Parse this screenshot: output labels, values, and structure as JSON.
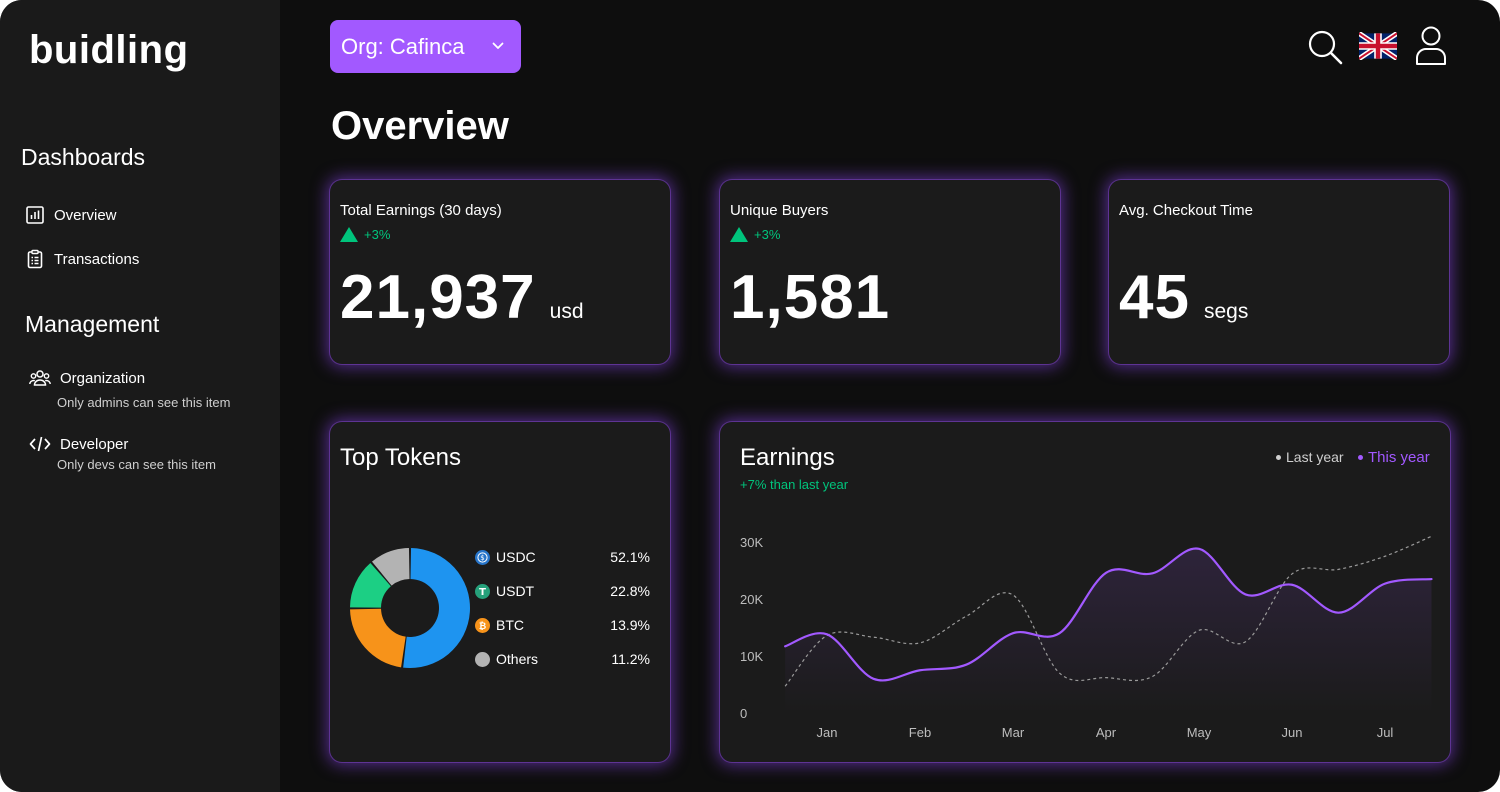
{
  "app": {
    "logo": "buidling"
  },
  "sidebar": {
    "dashboards_title": "Dashboards",
    "management_title": "Management",
    "items": {
      "overview": {
        "label": "Overview",
        "icon": "bar-chart-icon"
      },
      "transactions": {
        "label": "Transactions",
        "icon": "clipboard-icon"
      },
      "organization": {
        "label": "Organization",
        "icon": "users-icon",
        "note": "Only admins can see this item"
      },
      "developer": {
        "label": "Developer",
        "icon": "code-icon",
        "note": "Only devs can see this item"
      }
    }
  },
  "header": {
    "org_selector": "Org: Cafinca",
    "icons": [
      "search-icon",
      "uk-flag-icon",
      "user-icon"
    ]
  },
  "page": {
    "title": "Overview"
  },
  "kpis": {
    "earnings": {
      "label": "Total Earnings (30 days)",
      "delta": "+3%",
      "value": "21,937",
      "unit": "usd"
    },
    "buyers": {
      "label": "Unique Buyers",
      "delta": "+3%",
      "value": "1,581"
    },
    "checkout": {
      "label": "Avg. Checkout Time",
      "value": "45",
      "unit": "segs"
    }
  },
  "top_tokens": {
    "title": "Top Tokens",
    "items": [
      {
        "name": "USDC",
        "pct": "52.1%",
        "value": 52.1,
        "color": "#1e94f0"
      },
      {
        "name": "USDT",
        "pct": "22.8%",
        "value": 22.8,
        "color": "#f7931a"
      },
      {
        "name": "BTC",
        "pct": "13.9%",
        "value": 13.9,
        "color": "#1ccf84"
      },
      {
        "name": "Others",
        "pct": "11.2%",
        "value": 11.2,
        "color": "#b3b3b3"
      }
    ]
  },
  "earnings": {
    "title": "Earnings",
    "subtitle": "+7% than last year",
    "legend_last": "Last year",
    "legend_this": "This year",
    "colors": {
      "this_year": "#a259ff",
      "last_year": "#9a9a9a"
    }
  },
  "chart_data": {
    "type": "line",
    "title": "Earnings",
    "x": [
      0.55,
      1,
      1.5,
      2,
      2.5,
      3,
      3.5,
      4,
      4.5,
      5,
      5.5,
      6,
      6.5,
      7,
      7.5
    ],
    "categories": [
      "Jan",
      "Feb",
      "Mar",
      "Apr",
      "May",
      "Jun",
      "Jul"
    ],
    "yticks": [
      "0",
      "10K",
      "20K",
      "30K"
    ],
    "ylim": [
      0,
      30000
    ],
    "series": [
      {
        "name": "This year",
        "values": [
          11700,
          13800,
          6000,
          7500,
          8500,
          14000,
          14000,
          24600,
          24500,
          28800,
          20800,
          22500,
          17600,
          22700,
          23500
        ]
      },
      {
        "name": "Last year",
        "values": [
          4700,
          13600,
          13300,
          12300,
          17000,
          20700,
          7000,
          6200,
          6400,
          14500,
          12500,
          24400,
          25200,
          27500,
          31000
        ]
      }
    ]
  }
}
